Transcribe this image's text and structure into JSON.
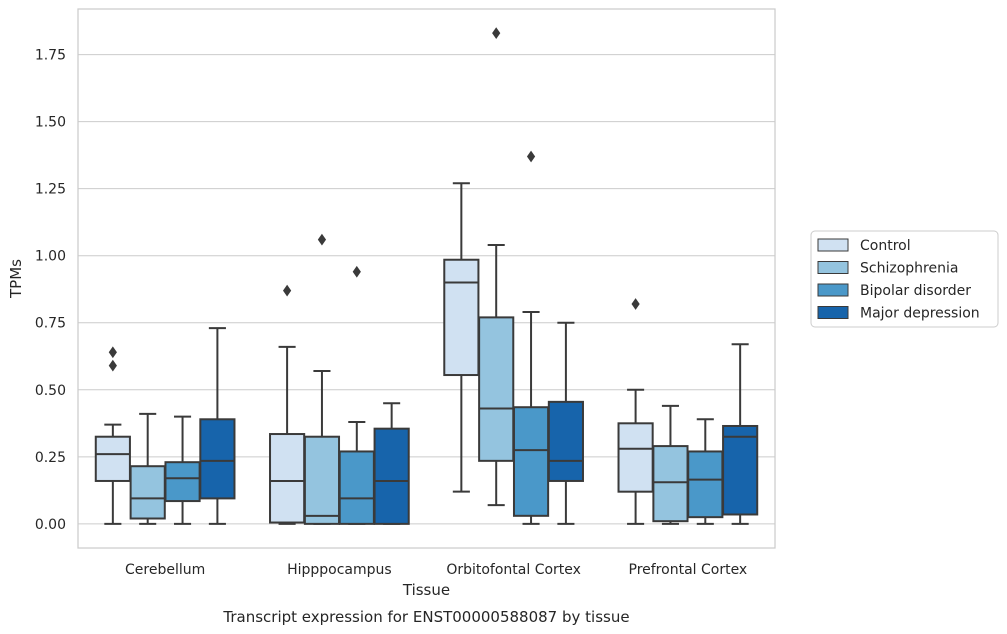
{
  "chart_data": {
    "type": "boxplot",
    "xlabel": "Tissue",
    "ylabel": "TPMs",
    "caption": "Transcript expression for ENST00000588087 by tissue",
    "ylim": [
      -0.09,
      1.92
    ],
    "yticks": [
      0.0,
      0.25,
      0.5,
      0.75,
      1.0,
      1.25,
      1.5,
      1.75
    ],
    "ytick_labels": [
      "0.00",
      "0.25",
      "0.50",
      "0.75",
      "1.00",
      "1.25",
      "1.50",
      "1.75"
    ],
    "grid": "horizontal",
    "legend_position": "right, outside plot",
    "categories": [
      "Cerebellum",
      "Hipppocampus",
      "Orbitofontal Cortex",
      "Prefrontal Cortex"
    ],
    "series": [
      {
        "name": "Control",
        "color": "#d0e1f2",
        "boxes": [
          {
            "whislo": 0.0,
            "q1": 0.16,
            "med": 0.26,
            "q3": 0.325,
            "whishi": 0.37,
            "fliers": [
              0.59,
              0.64
            ]
          },
          {
            "whislo": 0.0,
            "q1": 0.005,
            "med": 0.16,
            "q3": 0.335,
            "whishi": 0.66,
            "fliers": [
              0.87
            ]
          },
          {
            "whislo": 0.12,
            "q1": 0.555,
            "med": 0.9,
            "q3": 0.985,
            "whishi": 1.27,
            "fliers": []
          },
          {
            "whislo": 0.0,
            "q1": 0.12,
            "med": 0.28,
            "q3": 0.375,
            "whishi": 0.5,
            "fliers": [
              0.82
            ]
          }
        ]
      },
      {
        "name": "Schizophrenia",
        "color": "#94c4df",
        "boxes": [
          {
            "whislo": 0.0,
            "q1": 0.02,
            "med": 0.095,
            "q3": 0.215,
            "whishi": 0.41,
            "fliers": []
          },
          {
            "whislo": 0.0,
            "q1": 0.0,
            "med": 0.03,
            "q3": 0.325,
            "whishi": 0.57,
            "fliers": [
              1.06
            ]
          },
          {
            "whislo": 0.07,
            "q1": 0.235,
            "med": 0.43,
            "q3": 0.77,
            "whishi": 1.04,
            "fliers": [
              1.83
            ]
          },
          {
            "whislo": 0.0,
            "q1": 0.01,
            "med": 0.155,
            "q3": 0.29,
            "whishi": 0.44,
            "fliers": []
          }
        ]
      },
      {
        "name": "Bipolar disorder",
        "color": "#4a98c9",
        "boxes": [
          {
            "whislo": 0.0,
            "q1": 0.085,
            "med": 0.17,
            "q3": 0.23,
            "whishi": 0.4,
            "fliers": []
          },
          {
            "whislo": 0.0,
            "q1": 0.0,
            "med": 0.095,
            "q3": 0.27,
            "whishi": 0.38,
            "fliers": [
              0.94
            ]
          },
          {
            "whislo": 0.0,
            "q1": 0.03,
            "med": 0.275,
            "q3": 0.435,
            "whishi": 0.79,
            "fliers": [
              1.37
            ]
          },
          {
            "whislo": 0.0,
            "q1": 0.025,
            "med": 0.165,
            "q3": 0.27,
            "whishi": 0.39,
            "fliers": []
          }
        ]
      },
      {
        "name": "Major depression",
        "color": "#1764ab",
        "boxes": [
          {
            "whislo": 0.0,
            "q1": 0.095,
            "med": 0.235,
            "q3": 0.39,
            "whishi": 0.73,
            "fliers": []
          },
          {
            "whislo": 0.0,
            "q1": 0.0,
            "med": 0.16,
            "q3": 0.355,
            "whishi": 0.45,
            "fliers": []
          },
          {
            "whislo": 0.0,
            "q1": 0.16,
            "med": 0.235,
            "q3": 0.455,
            "whishi": 0.75,
            "fliers": []
          },
          {
            "whislo": 0.0,
            "q1": 0.035,
            "med": 0.325,
            "q3": 0.365,
            "whishi": 0.67,
            "fliers": []
          }
        ]
      }
    ]
  }
}
